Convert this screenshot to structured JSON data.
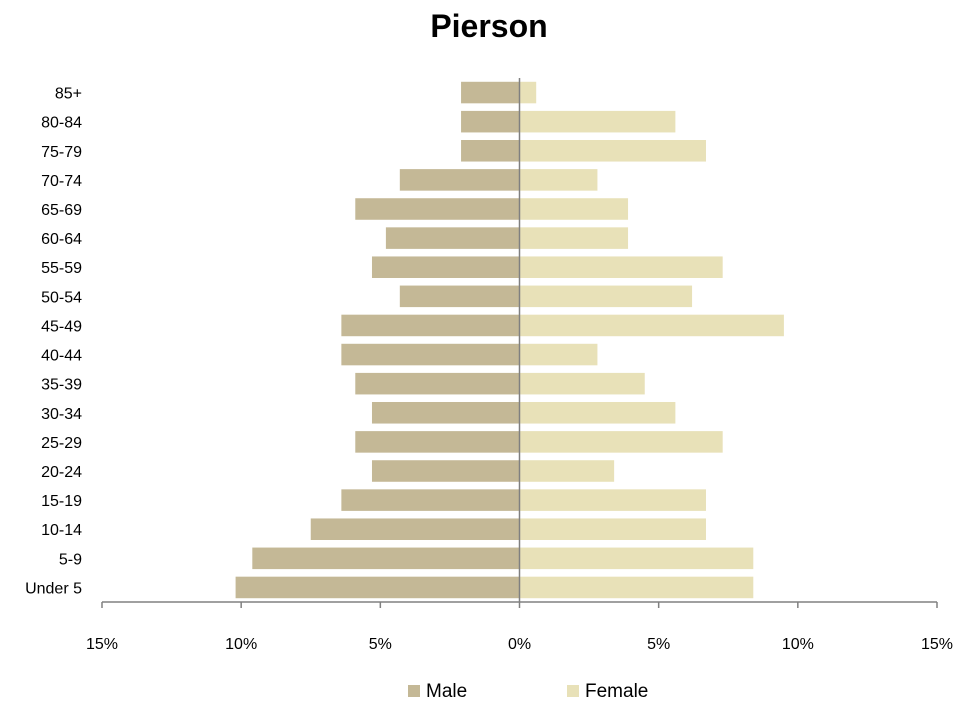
{
  "chart_data": {
    "type": "bar",
    "orientation": "horizontal",
    "title": "Pierson",
    "categories": [
      "Under 5",
      "5-9",
      "10-14",
      "15-19",
      "20-24",
      "25-29",
      "30-34",
      "35-39",
      "40-44",
      "45-49",
      "50-54",
      "55-59",
      "60-64",
      "65-69",
      "70-74",
      "75-79",
      "80-84",
      "85+"
    ],
    "series": [
      {
        "name": "Male",
        "color": "#c4b896",
        "direction": "left",
        "values": [
          10.2,
          9.6,
          7.5,
          6.4,
          5.3,
          5.9,
          5.3,
          5.9,
          6.4,
          6.4,
          4.3,
          5.3,
          4.8,
          5.9,
          4.3,
          2.1,
          2.1,
          2.1
        ]
      },
      {
        "name": "Female",
        "color": "#e8e1b8",
        "direction": "right",
        "values": [
          8.4,
          8.4,
          6.7,
          6.7,
          3.4,
          7.3,
          5.6,
          4.5,
          2.8,
          9.5,
          6.2,
          7.3,
          3.9,
          3.9,
          2.8,
          6.7,
          5.6,
          0.6
        ]
      }
    ],
    "xlim": [
      -15,
      15
    ],
    "xticks": [
      -15,
      -10,
      -5,
      0,
      5,
      10,
      15
    ],
    "xtick_labels": [
      "15%",
      "10%",
      "5%",
      "0%",
      "5%",
      "10%",
      "15%"
    ],
    "xlabel": "",
    "ylabel": "",
    "grid": false,
    "legend": "bottom"
  }
}
